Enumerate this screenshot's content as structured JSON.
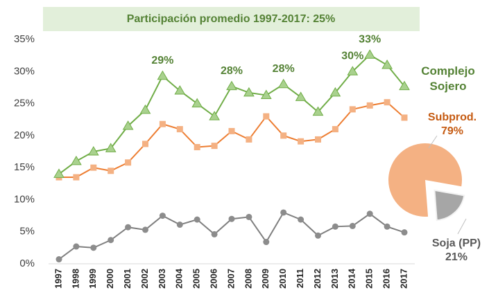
{
  "chart_data": [
    {
      "type": "line",
      "title": "Participación promedio 1997-2017: 25%",
      "categories": [
        "1997",
        "1998",
        "1999",
        "2000",
        "2001",
        "2002",
        "2003",
        "2004",
        "2005",
        "2006",
        "2007",
        "2008",
        "2009",
        "2010",
        "2011",
        "2012",
        "2013",
        "2014",
        "2015",
        "2016",
        "2017"
      ],
      "ylim": [
        0,
        35
      ],
      "yticks": [
        {
          "value": 0,
          "label": "0%"
        },
        {
          "value": 5,
          "label": "5%"
        },
        {
          "value": 10,
          "label": "10%"
        },
        {
          "value": 15,
          "label": "15%"
        },
        {
          "value": 20,
          "label": "20%"
        },
        {
          "value": 25,
          "label": "25%"
        },
        {
          "value": 30,
          "label": "30%"
        },
        {
          "value": 35,
          "label": "35%"
        }
      ],
      "series": [
        {
          "name": "Complejo Sojero",
          "color": "#70ad47",
          "marker": "triangle",
          "marker_color": "#a9d18e",
          "values": [
            14,
            16,
            17.5,
            18,
            21.5,
            24,
            29.3,
            27,
            25,
            23,
            27.7,
            26.7,
            26.3,
            28,
            26,
            23.7,
            26.7,
            30,
            32.6,
            31,
            27.7
          ],
          "value_labels": [
            null,
            null,
            null,
            null,
            null,
            null,
            "29%",
            null,
            null,
            null,
            "28%",
            null,
            null,
            "28%",
            null,
            null,
            null,
            "30%",
            "33%",
            null,
            null
          ]
        },
        {
          "color": "#ed7d31",
          "marker": "square",
          "marker_color": "#f4b183",
          "values": [
            13.5,
            13.5,
            15,
            14.5,
            15.8,
            18.7,
            21.8,
            21,
            18.2,
            18.4,
            20.7,
            19.4,
            23,
            20,
            19.1,
            19.4,
            21,
            24.1,
            24.7,
            25.2,
            22.8
          ]
        },
        {
          "color": "#7f7f7f",
          "marker": "circle",
          "marker_color": "#8c8c8c",
          "values": [
            0.7,
            2.7,
            2.5,
            3.7,
            5.7,
            5.3,
            7.5,
            6.1,
            6.9,
            4.6,
            7,
            7.3,
            3.4,
            8,
            6.9,
            4.4,
            5.8,
            5.9,
            7.8,
            5.8,
            4.9
          ]
        }
      ]
    },
    {
      "type": "pie",
      "categories": [
        "Subprod.",
        "Soja (PP)"
      ],
      "values": [
        79,
        21
      ],
      "value_labels": [
        "79%",
        "21%"
      ],
      "colors": [
        "#f4b183",
        "#a6a6a6"
      ],
      "label_colors": [
        "#c55a11",
        "#595959"
      ]
    }
  ]
}
